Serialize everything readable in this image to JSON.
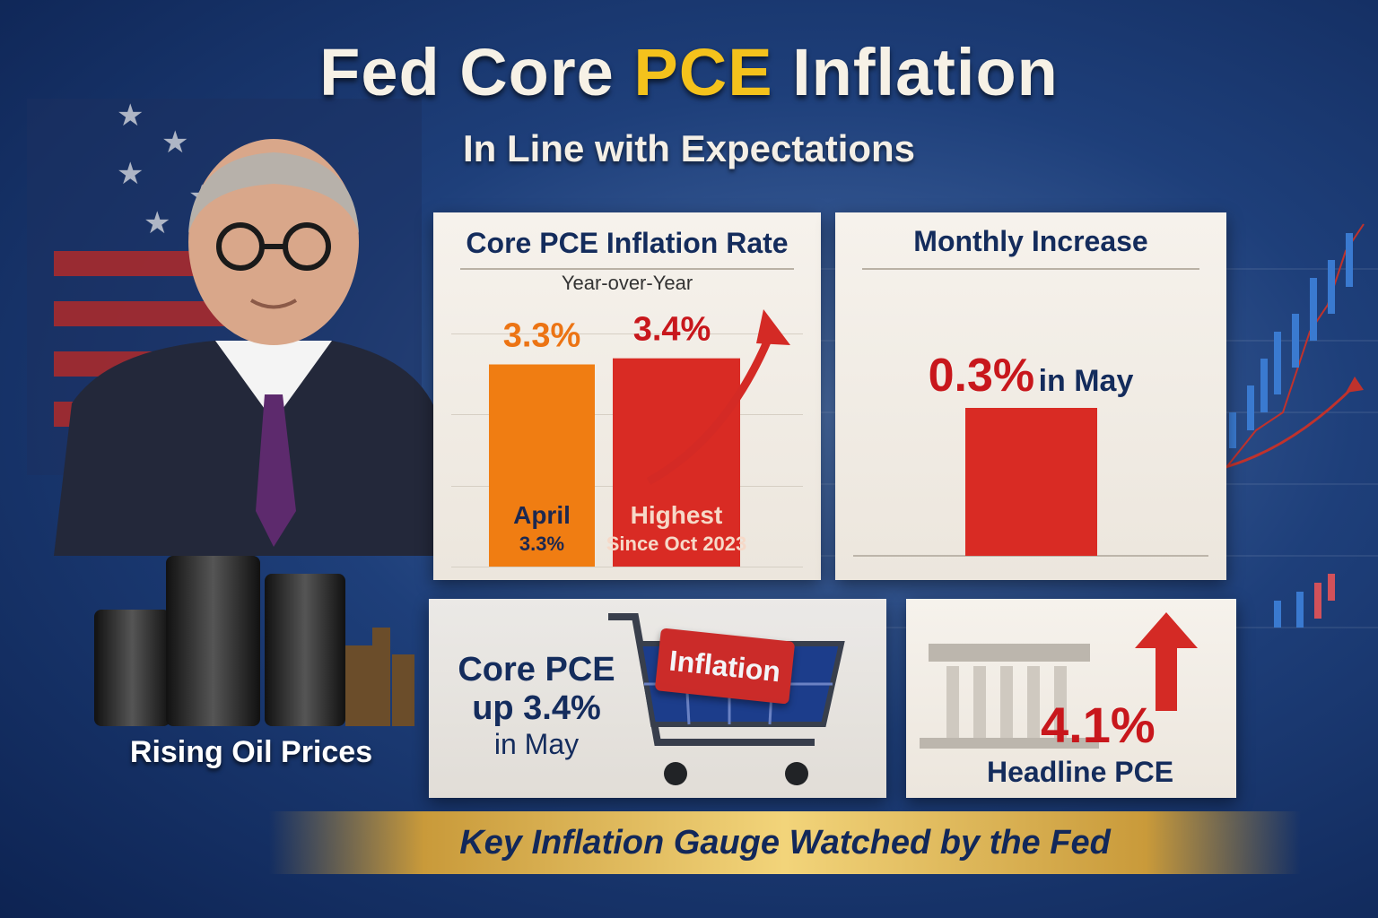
{
  "header": {
    "title_part1": "Fed Core ",
    "title_highlight": "PCE",
    "title_part2": " Inflation",
    "subtitle": "In Line with Expectations"
  },
  "yoy_panel": {
    "title": "Core PCE Inflation Rate",
    "subtitle": "Year-over-Year"
  },
  "monthly_panel": {
    "title": "Monthly Increase",
    "value": "0.3%",
    "suffix": "in May"
  },
  "oil": {
    "caption": "Rising Oil Prices"
  },
  "cart_panel": {
    "line1": "Core PCE",
    "line2": "up 3.4%",
    "line3": "in May",
    "sign_text": "Inflation"
  },
  "headline_panel": {
    "value": "4.1%",
    "label": "Headline PCE"
  },
  "banner": {
    "text": "Key Inflation Gauge Watched by the Fed"
  },
  "colors": {
    "accent_gold": "#f4c21c",
    "bar_orange": "#f07d12",
    "bar_red": "#d92b24",
    "navy": "#142c5c"
  },
  "chart_data": [
    {
      "type": "bar",
      "title": "Core PCE Inflation Rate",
      "subtitle": "Year-over-Year",
      "categories": [
        "April",
        "Highest Since Oct 2023"
      ],
      "values": [
        3.3,
        3.4
      ],
      "value_labels": [
        "3.3%",
        "3.4%"
      ],
      "inner_labels": [
        [
          "April",
          "3.3%"
        ],
        [
          "Highest",
          "Since Oct 2023"
        ]
      ],
      "colors": [
        "#f07d12",
        "#d92b24"
      ],
      "unit": "%"
    },
    {
      "type": "bar",
      "title": "Monthly Increase",
      "categories": [
        "May"
      ],
      "values": [
        0.3
      ],
      "value_labels": [
        "0.3%"
      ],
      "colors": [
        "#d92b24"
      ],
      "unit": "%"
    }
  ]
}
